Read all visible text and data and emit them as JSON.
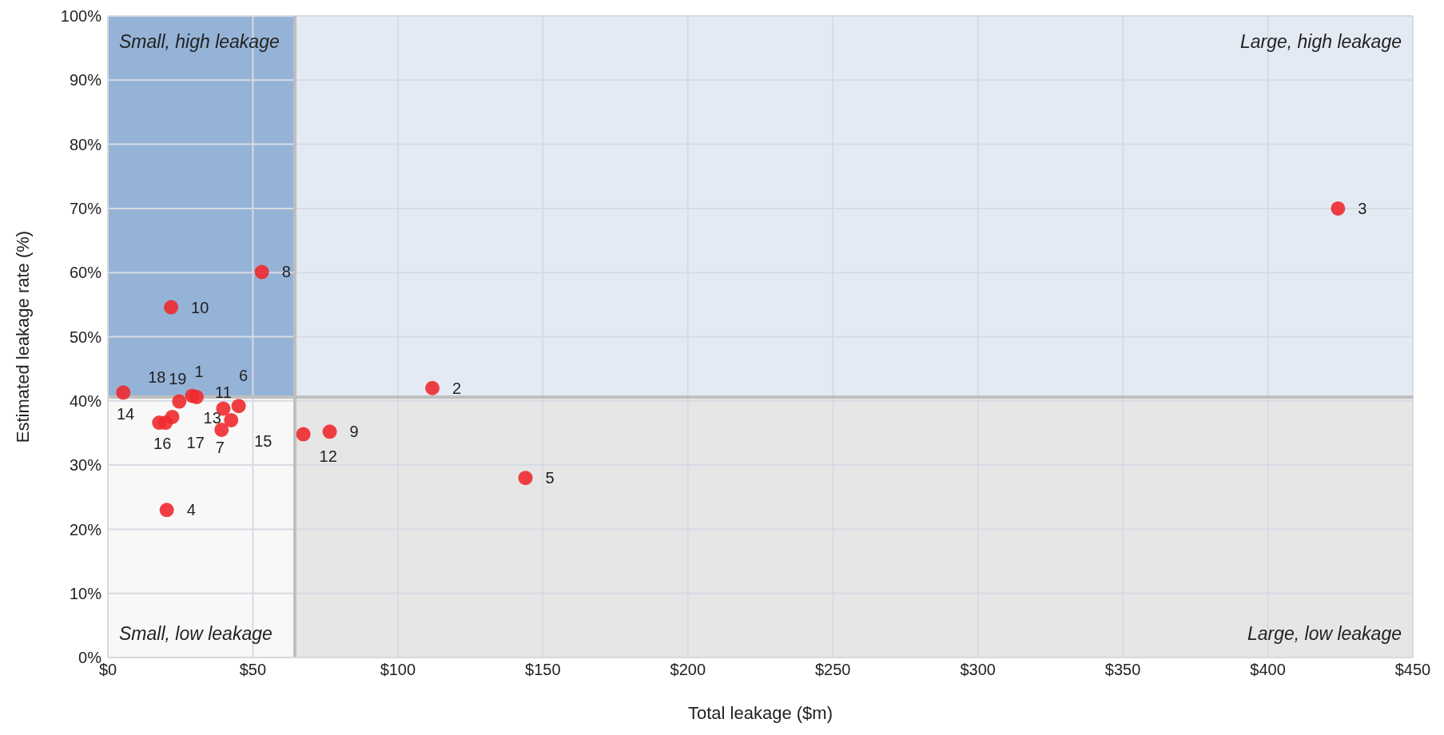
{
  "chart_data": {
    "type": "scatter",
    "xlabel": "Total leakage ($m)",
    "ylabel": "Estimated leakage rate (%)",
    "x": [
      30.6,
      111.9,
      424.2,
      20.3,
      144,
      45.1,
      39.2,
      53.1,
      76.5,
      21.8,
      39.8,
      67.4,
      29.1,
      17.7,
      42.5,
      19.9,
      22.2,
      5.3,
      24.6
    ],
    "values": [
      40.6,
      42.0,
      70.0,
      23.0,
      28.0,
      39.2,
      35.5,
      60.1,
      35.2,
      54.6,
      38.8,
      34.8,
      40.8,
      36.6,
      37.0,
      36.6,
      37.5,
      41.3,
      39.9
    ],
    "color": "#ee2a2f",
    "marker": "circle",
    "grid": true,
    "xlim": [
      0,
      450
    ],
    "xticks": [
      {
        "value": 0,
        "label": "$0"
      },
      {
        "value": 50,
        "label": "$50"
      },
      {
        "value": 100,
        "label": "$100"
      },
      {
        "value": 150,
        "label": "$150"
      },
      {
        "value": 200,
        "label": "$200"
      },
      {
        "value": 250,
        "label": "$250"
      },
      {
        "value": 300,
        "label": "$300"
      },
      {
        "value": 350,
        "label": "$350"
      },
      {
        "value": 400,
        "label": "$400"
      },
      {
        "value": 450,
        "label": "$450"
      }
    ],
    "ylim": [
      0,
      100
    ],
    "yticks": [
      {
        "value": 0,
        "label": "0%"
      },
      {
        "value": 10,
        "label": "10%"
      },
      {
        "value": 20,
        "label": "20%"
      },
      {
        "value": 30,
        "label": "30%"
      },
      {
        "value": 40,
        "label": "40%"
      },
      {
        "value": 50,
        "label": "50%"
      },
      {
        "value": 60,
        "label": "60%"
      },
      {
        "value": 70,
        "label": "70%"
      },
      {
        "value": 80,
        "label": "80%"
      },
      {
        "value": 90,
        "label": "90%"
      },
      {
        "value": 100,
        "label": "100%"
      }
    ],
    "ref_lines": [
      {
        "axis": "x",
        "value": 64.5,
        "color": "#bfbfbf"
      },
      {
        "axis": "y",
        "value": 40.6,
        "color": "#bfbfbf"
      }
    ],
    "annotations": [
      "Small, high leakage",
      "Large, high leakage",
      "Small, low leakage",
      "Large, low leakage",
      {
        "text": "1",
        "x": 30.6,
        "y": 40.6
      },
      {
        "text": "2",
        "x": 111.9,
        "y": 42.0
      },
      {
        "text": "3",
        "x": 424.2,
        "y": 70.0
      },
      {
        "text": "4",
        "x": 20.3,
        "y": 23.0
      },
      {
        "text": "5",
        "x": 144,
        "y": 28.0
      },
      {
        "text": "6",
        "x": 45.1,
        "y": 39.2
      },
      {
        "text": "7",
        "x": 39.2,
        "y": 35.5
      },
      {
        "text": "8",
        "x": 53.1,
        "y": 60.1
      },
      {
        "text": "9",
        "x": 76.5,
        "y": 35.2
      },
      {
        "text": "10",
        "x": 21.8,
        "y": 54.6
      },
      {
        "text": "11",
        "x": 39.8,
        "y": 38.8
      },
      {
        "text": "12",
        "x": 67.4,
        "y": 34.8
      },
      {
        "text": "13",
        "x": 29.1,
        "y": 40.8
      },
      {
        "text": "14",
        "x": 17.7,
        "y": 36.6
      },
      {
        "text": "15",
        "x": 42.5,
        "y": 37.0
      },
      {
        "text": "16",
        "x": 19.9,
        "y": 36.6
      },
      {
        "text": "17",
        "x": 22.2,
        "y": 37.5
      },
      {
        "text": "18",
        "x": 5.3,
        "y": 41.3
      },
      {
        "text": "19",
        "x": 24.6,
        "y": 39.9
      }
    ]
  }
}
